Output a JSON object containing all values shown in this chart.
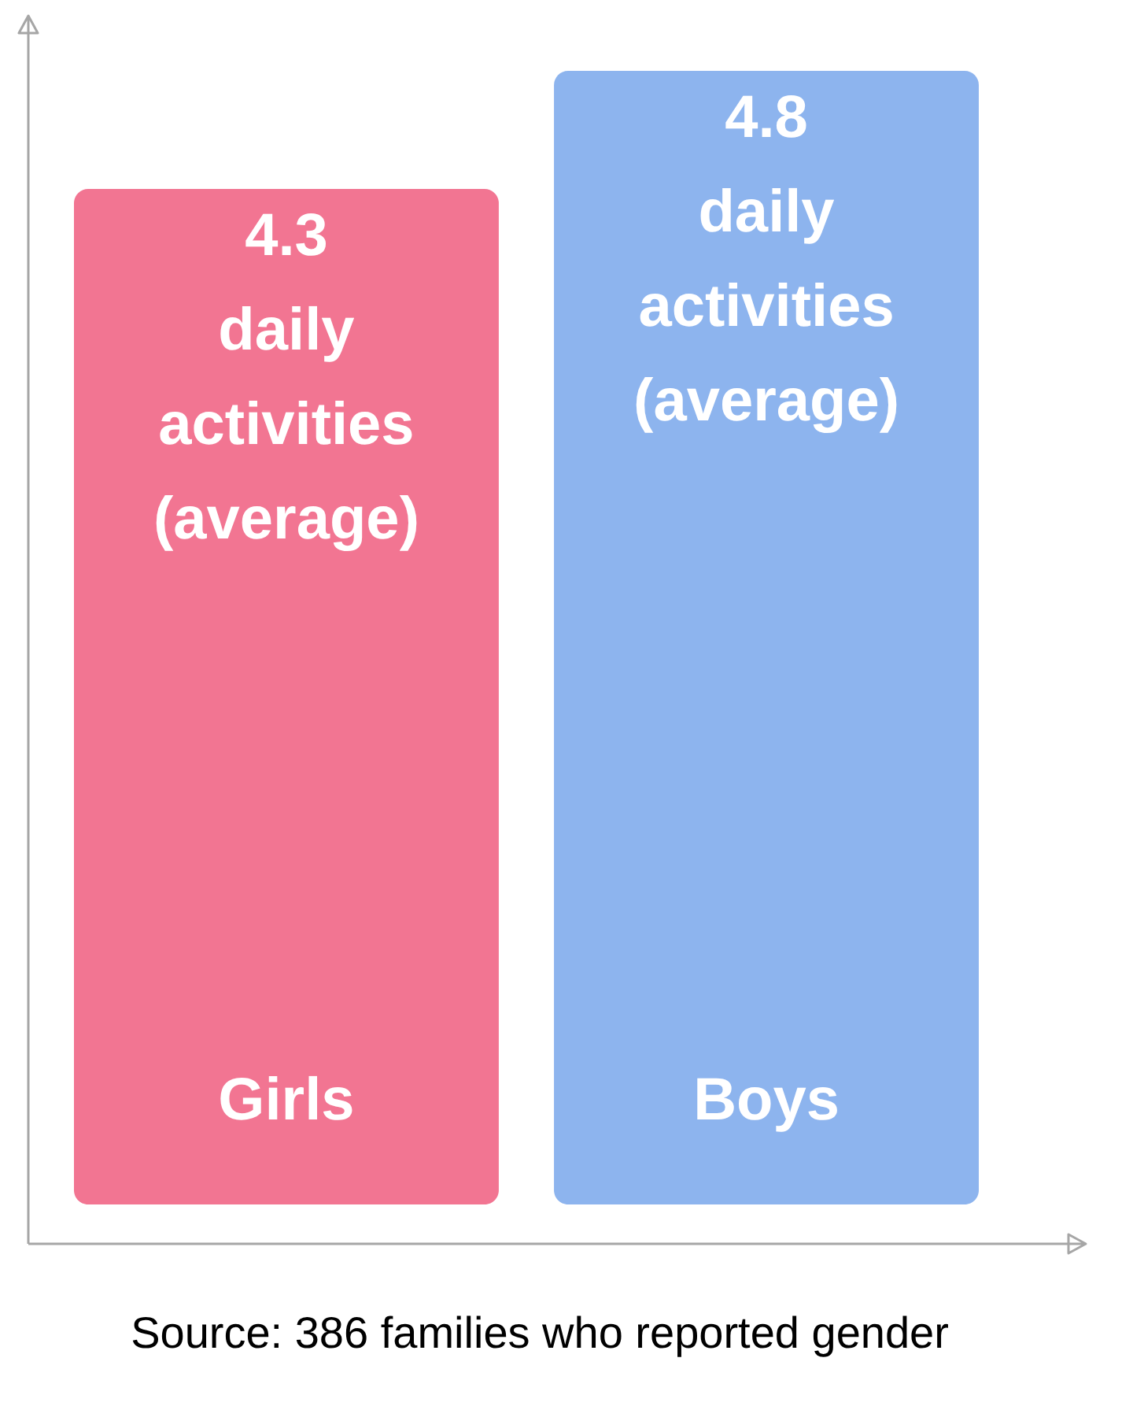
{
  "chart_data": {
    "type": "bar",
    "categories": [
      "Girls",
      "Boys"
    ],
    "values": [
      4.3,
      4.8
    ],
    "colors": [
      "#f27592",
      "#8db4ee"
    ],
    "value_labels": [
      "4.3 daily activities (average)",
      "4.8 daily activities (average)"
    ],
    "annotations": [
      "Source: 386 families who reported gender"
    ],
    "tick_labels": false,
    "grid": false
  }
}
